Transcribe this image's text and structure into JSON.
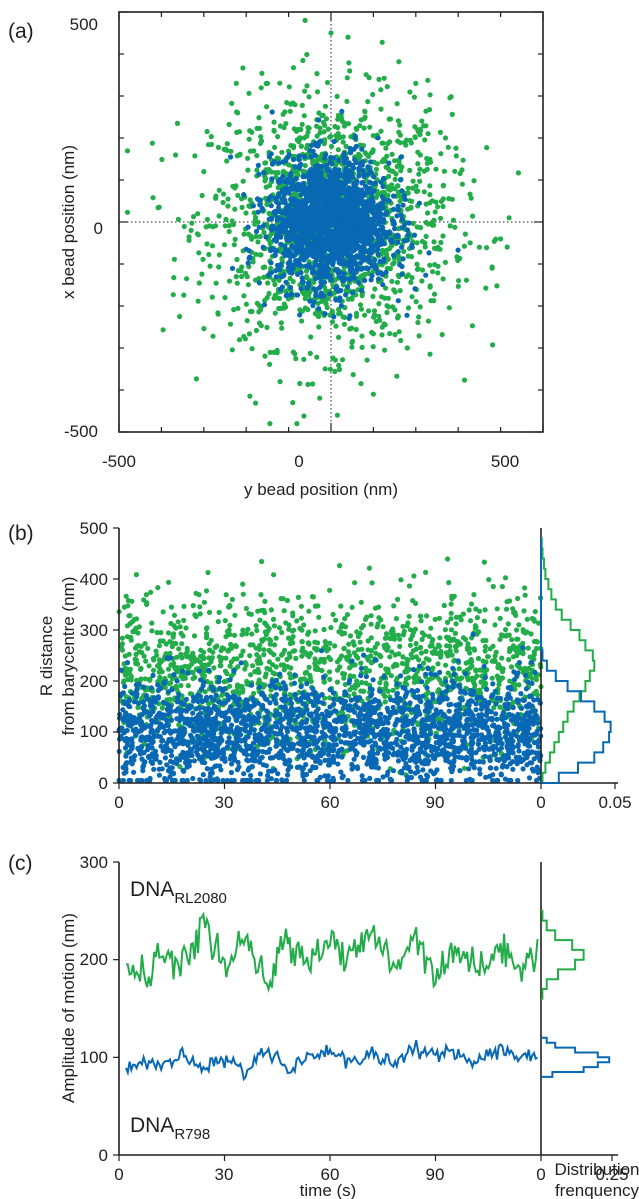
{
  "colors": {
    "green": "#22ac4a",
    "blue": "#0868b4",
    "axis": "#231f20"
  },
  "chart_data": [
    {
      "panel_label": "(a)",
      "type": "scatter",
      "xlabel": "y bead position (nm)",
      "ylabel": "x bead position (nm)",
      "xlim": [
        -500,
        500
      ],
      "ylim": [
        -500,
        500
      ],
      "xticks": [
        "-500",
        "0",
        "500"
      ],
      "yticks": [
        "500",
        "0",
        "-500"
      ],
      "grid": false,
      "series": [
        {
          "color": "green",
          "spread_nm": 140,
          "n_points": 1600,
          "points": [
            [
              -300,
              120
            ],
            [
              -250,
              -180
            ],
            [
              310,
              90
            ],
            [
              350,
              -60
            ],
            [
              -220,
              260
            ],
            [
              180,
              -300
            ],
            [
              0,
              450
            ],
            [
              40,
              440
            ],
            [
              -120,
              -380
            ],
            [
              100,
              -410
            ],
            [
              420,
              10
            ],
            [
              -330,
              -20
            ],
            [
              270,
              200
            ],
            [
              -150,
              330
            ],
            [
              200,
              330
            ],
            [
              -90,
              -430
            ],
            [
              15,
              -460
            ],
            [
              380,
              -110
            ]
          ]
        },
        {
          "color": "blue",
          "spread_nm": 70,
          "n_points": 1800,
          "points": [
            [
              0,
              0
            ],
            [
              -120,
              100
            ],
            [
              130,
              -120
            ],
            [
              60,
              180
            ],
            [
              -40,
              -190
            ],
            [
              170,
              40
            ],
            [
              -160,
              -60
            ]
          ]
        }
      ]
    },
    {
      "panel_label": "(b)",
      "type": "scatter",
      "xlabel": "",
      "ylabel_line1": "R distance",
      "ylabel_line2": "from barycentre (nm)",
      "xlim": [
        0,
        120
      ],
      "ylim": [
        0,
        500
      ],
      "xticks": [
        "0",
        "30",
        "60",
        "90"
      ],
      "yticks": [
        "500",
        "400",
        "300",
        "200",
        "100",
        "0"
      ],
      "series": [
        {
          "color": "green",
          "mean_nm": 220,
          "spread_nm": 75,
          "n_points": 1500
        },
        {
          "color": "blue",
          "mean_nm": 100,
          "spread_nm": 50,
          "n_points": 2200
        }
      ],
      "histogram": {
        "xlim": [
          0,
          0.05
        ],
        "xticks": [
          "0",
          "0.05"
        ],
        "bins_nm": [
          0,
          20,
          40,
          60,
          80,
          100,
          120,
          140,
          160,
          180,
          200,
          220,
          240,
          260,
          280,
          300,
          320,
          340,
          360,
          380,
          400,
          420,
          440,
          460,
          480
        ],
        "series": [
          {
            "color": "green",
            "frequencies": [
              0.001,
              0.003,
              0.006,
              0.009,
              0.012,
              0.015,
              0.018,
              0.022,
              0.026,
              0.03,
              0.033,
              0.036,
              0.035,
              0.03,
              0.026,
              0.02,
              0.014,
              0.01,
              0.007,
              0.005,
              0.003,
              0.002,
              0.001,
              0.0005
            ]
          },
          {
            "color": "blue",
            "frequencies": [
              0.012,
              0.025,
              0.036,
              0.042,
              0.046,
              0.047,
              0.043,
              0.036,
              0.027,
              0.018,
              0.01,
              0.004,
              0.001,
              0,
              0,
              0,
              0,
              0,
              0,
              0,
              0,
              0,
              0,
              0
            ]
          }
        ]
      }
    },
    {
      "panel_label": "(c)",
      "type": "line",
      "xlabel": "time (s)",
      "ylabel": "Amplitude of motion (nm)",
      "xlim": [
        0,
        120
      ],
      "ylim": [
        0,
        300
      ],
      "xticks": [
        "0",
        "30",
        "60",
        "90"
      ],
      "yticks": [
        "300",
        "200",
        "100",
        "0"
      ],
      "series": [
        {
          "label_main": "DNA",
          "label_sub": "RL2080",
          "color": "green",
          "x": [
            0,
            6,
            12,
            18,
            24,
            30,
            36,
            42,
            48,
            54,
            60,
            66,
            72,
            78,
            84,
            90,
            96,
            102,
            108,
            114,
            120
          ],
          "y": [
            212,
            180,
            205,
            190,
            238,
            192,
            218,
            175,
            220,
            200,
            222,
            198,
            230,
            190,
            228,
            185,
            214,
            190,
            208,
            200,
            205
          ]
        },
        {
          "label_main": "DNA",
          "label_sub": "R798",
          "color": "blue",
          "x": [
            0,
            6,
            12,
            18,
            24,
            30,
            36,
            42,
            48,
            54,
            60,
            66,
            72,
            78,
            84,
            90,
            96,
            102,
            108,
            114,
            120
          ],
          "y": [
            88,
            95,
            92,
            100,
            90,
            98,
            85,
            110,
            88,
            100,
            108,
            94,
            105,
            92,
            112,
            100,
            104,
            96,
            108,
            102,
            104
          ]
        }
      ],
      "histogram": {
        "xlim": [
          0,
          0.25
        ],
        "xticks": [
          "0",
          "0.25"
        ],
        "xlabel_line1": "Distribution",
        "xlabel_line2": "frenquency",
        "series": [
          {
            "color": "green",
            "bins_nm": [
              160,
              170,
              180,
              190,
              200,
              210,
              220,
              230,
              240,
              250
            ],
            "frequencies": [
              0.005,
              0.02,
              0.06,
              0.12,
              0.15,
              0.11,
              0.05,
              0.02,
              0.005
            ]
          },
          {
            "color": "blue",
            "bins_nm": [
              80,
              85,
              90,
              95,
              100,
              105,
              110,
              115,
              120
            ],
            "frequencies": [
              0.04,
              0.15,
              0.2,
              0.24,
              0.2,
              0.12,
              0.05,
              0.02
            ]
          }
        ]
      }
    }
  ]
}
